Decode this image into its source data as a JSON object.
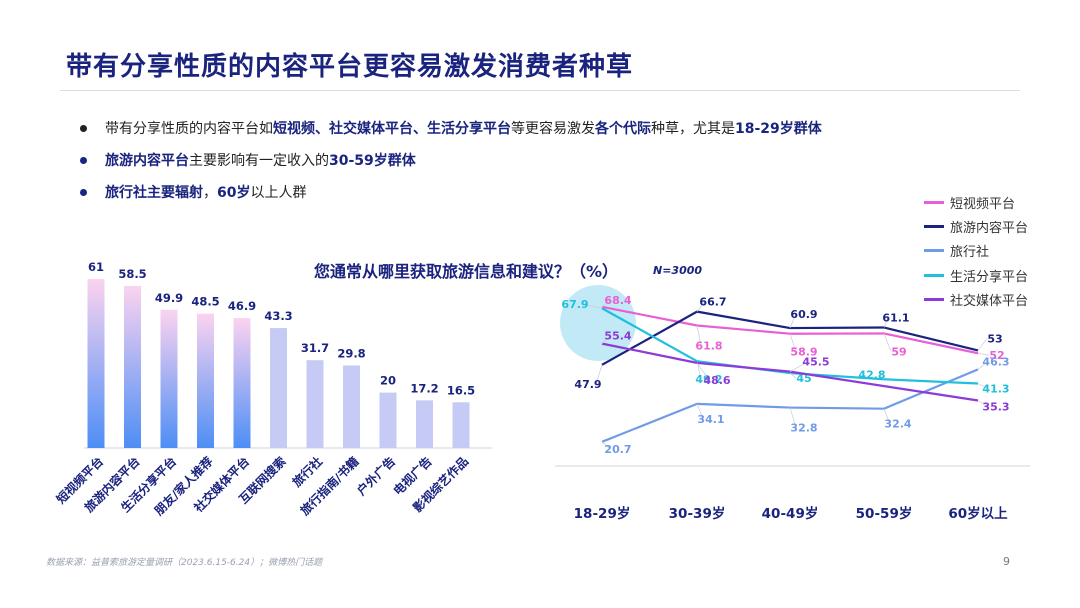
{
  "page": {
    "title": "带有分享性质的内容平台更容易激发消费者种草",
    "bullets": [
      {
        "segments": [
          {
            "t": "带有分享性质的内容平台如",
            "b": false
          },
          {
            "t": "短视频、社交媒体平台、生活分享平台",
            "b": true
          },
          {
            "t": "等更容易激发",
            "b": false
          },
          {
            "t": "各个代际",
            "b": true
          },
          {
            "t": "种草，尤其是",
            "b": false
          },
          {
            "t": "18-29岁群体",
            "b": true
          }
        ],
        "dot": "black"
      },
      {
        "segments": [
          {
            "t": "旅游内容平台",
            "b": true
          },
          {
            "t": "主要影响有一定收入的",
            "b": false
          },
          {
            "t": "30-59岁群体",
            "b": true
          }
        ],
        "dot": "navy"
      },
      {
        "segments": [
          {
            "t": "旅行社主要辐射",
            "b": true
          },
          {
            "t": "，",
            "b": false
          },
          {
            "t": "60岁",
            "b": true
          },
          {
            "t": "以上人群",
            "b": false
          }
        ],
        "dot": "navy"
      }
    ],
    "source": "数据来源：益普索旅游定量调研（2023.6.15-6.24）；微博热门话题",
    "page_number": "9"
  },
  "chart_data": [
    {
      "type": "bar",
      "title": "您通常从哪里获取旅游信息和建议？（%）",
      "note": "N=3000",
      "categories": [
        "短视频平台",
        "旅游内容平台",
        "生活分享平台",
        "朋友/家人推荐",
        "社交媒体平台",
        "互联网搜索",
        "旅行社",
        "旅行指南/书籍",
        "户外广告",
        "电视广告",
        "影视综艺作品"
      ],
      "values": [
        61,
        58.5,
        49.9,
        48.5,
        46.9,
        43.3,
        31.7,
        29.8,
        20,
        17.2,
        16.5
      ],
      "value_labels": [
        "61",
        "58.5",
        "49.9",
        "48.5",
        "46.9",
        "43.3",
        "31.7",
        "29.8",
        "20",
        "17.2",
        "16.5"
      ],
      "highlighted_count": 5,
      "colors": {
        "highlight_top": "#fbd3f0",
        "highlight_bottom": "#4d8ef5",
        "normal": "#c5cbf5"
      },
      "grid": false
    },
    {
      "type": "line",
      "categories": [
        "18-29岁",
        "30-39岁",
        "40-49岁",
        "50-59岁",
        "60岁以上"
      ],
      "series": [
        {
          "name": "短视频平台",
          "color": "#e85fd6",
          "values": [
            68.4,
            61.8,
            58.9,
            59,
            52
          ],
          "labels": [
            "68.4",
            "61.8",
            "58.9",
            "59",
            "52"
          ]
        },
        {
          "name": "旅游内容平台",
          "color": "#1a237e",
          "values": [
            47.9,
            66.7,
            60.9,
            61.1,
            53
          ],
          "labels": [
            "47.9",
            "66.7",
            "60.9",
            "61.1",
            "53"
          ]
        },
        {
          "name": "旅行社",
          "color": "#6f9be8",
          "values": [
            20.7,
            34.1,
            32.8,
            32.4,
            46.3
          ],
          "labels": [
            "20.7",
            "34.1",
            "32.8",
            "32.4",
            "46.3"
          ]
        },
        {
          "name": "生活分享平台",
          "color": "#1fc0dc",
          "values": [
            67.9,
            49.2,
            45,
            42.8,
            41.3
          ],
          "labels": [
            "67.9",
            "49.2",
            "45",
            "42.8",
            "41.3"
          ]
        },
        {
          "name": "社交媒体平台",
          "color": "#8e3ad6",
          "values": [
            55.4,
            48.6,
            45.5,
            null,
            35.3
          ],
          "labels": [
            "55.4",
            "48.6",
            "45.5",
            "",
            "35.3"
          ]
        }
      ],
      "highlight_circle_category": "18-29岁",
      "legend_position": "top-right",
      "grid": false
    }
  ]
}
